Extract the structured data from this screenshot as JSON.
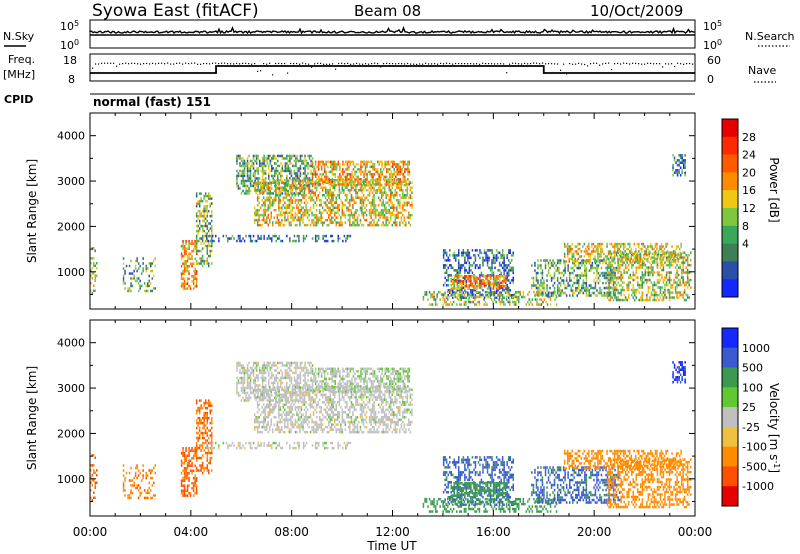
{
  "header": {
    "station": "Syowa East (fitACF)",
    "beam": "Beam 08",
    "date": "10/Oct/2009"
  },
  "panels": {
    "nsky": {
      "label": "N.Sky",
      "ticks_left": [
        "10^5",
        "10^0"
      ],
      "ticks_right": [
        "10^5",
        "10^0"
      ],
      "right_label": "N.Search"
    },
    "freq": {
      "label_line1": "Freq.",
      "label_line2": "[MHz]",
      "ticks_left": [
        "18",
        "8"
      ],
      "ticks_right": [
        "60",
        "0"
      ],
      "right_label": "Nave"
    },
    "cpid": {
      "label": "CPID",
      "mode": "normal (fast) 151"
    }
  },
  "colors": {
    "power": [
      "#1428ff",
      "#2a4faa",
      "#3f7f55",
      "#3aa85a",
      "#7dc83c",
      "#f0c814",
      "#ff8c00",
      "#ff5a00",
      "#ff2a00",
      "#e60000"
    ],
    "velocity": [
      "#1428ff",
      "#3a5ad0",
      "#3a9a50",
      "#60c830",
      "#c0c0c0",
      "#f0c040",
      "#ff8c00",
      "#ff5000",
      "#e60000"
    ]
  },
  "chart_data": [
    {
      "type": "heatmap",
      "name": "Power panel",
      "xlabel": "",
      "ylabel": "Slant Range [km]",
      "xlim": [
        0,
        24
      ],
      "ylim": [
        180,
        4500
      ],
      "x_ticks": [
        "00:00",
        "04:00",
        "08:00",
        "12:00",
        "16:00",
        "20:00",
        "00:00"
      ],
      "y_ticks": [
        1000,
        2000,
        3000,
        4000
      ],
      "colorbar": {
        "label": "Power [dB]",
        "ticks": [
          "4",
          "8",
          "12",
          "16",
          "20",
          "24",
          "28"
        ],
        "range": [
          0,
          30
        ]
      },
      "regions": [
        {
          "t": [
            0.0,
            0.3
          ],
          "r": [
            500,
            1500
          ],
          "power": 14,
          "vel": -300,
          "dens": 0.35
        },
        {
          "t": [
            1.3,
            2.6
          ],
          "r": [
            550,
            1300
          ],
          "power": 10,
          "vel": -250,
          "dens": 0.3
        },
        {
          "t": [
            3.6,
            4.2
          ],
          "r": [
            600,
            1700
          ],
          "power": 20,
          "vel": -350,
          "dens": 0.55
        },
        {
          "t": [
            4.2,
            4.8
          ],
          "r": [
            1100,
            2700
          ],
          "power": 12,
          "vel": -300,
          "dens": 0.45
        },
        {
          "t": [
            5.8,
            8.8
          ],
          "r": [
            2700,
            3550
          ],
          "power": 10,
          "vel": 0,
          "dens": 0.55
        },
        {
          "t": [
            6.5,
            12.8
          ],
          "r": [
            2000,
            3000
          ],
          "power": 16,
          "vel": 0,
          "dens": 0.5
        },
        {
          "t": [
            8.8,
            12.7
          ],
          "r": [
            2900,
            3450
          ],
          "power": 18,
          "vel": 10,
          "dens": 0.6
        },
        {
          "t": [
            4.6,
            10.5
          ],
          "r": [
            1650,
            1800
          ],
          "power": 6,
          "vel": 0,
          "dens": 0.35
        },
        {
          "t": [
            14.0,
            16.8
          ],
          "r": [
            400,
            1450
          ],
          "power": 6,
          "vel": 400,
          "dens": 0.45
        },
        {
          "t": [
            14.3,
            16.5
          ],
          "r": [
            600,
            900
          ],
          "power": 20,
          "vel": 150,
          "dens": 0.6
        },
        {
          "t": [
            13.2,
            18.5
          ],
          "r": [
            250,
            550
          ],
          "power": 14,
          "vel": 100,
          "dens": 0.4
        },
        {
          "t": [
            17.5,
            21.0
          ],
          "r": [
            450,
            1250
          ],
          "power": 10,
          "vel": 400,
          "dens": 0.45
        },
        {
          "t": [
            20.5,
            23.8
          ],
          "r": [
            350,
            1400
          ],
          "power": 14,
          "vel": -200,
          "dens": 0.45
        },
        {
          "t": [
            18.8,
            23.5
          ],
          "r": [
            1200,
            1600
          ],
          "power": 16,
          "vel": -150,
          "dens": 0.45
        },
        {
          "t": [
            23.1,
            23.6
          ],
          "r": [
            3100,
            3550
          ],
          "power": 6,
          "vel": 800,
          "dens": 0.6
        }
      ]
    },
    {
      "type": "heatmap",
      "name": "Velocity panel",
      "xlabel": "Time UT",
      "ylabel": "Slant Range [km]",
      "xlim": [
        0,
        24
      ],
      "ylim": [
        180,
        4500
      ],
      "x_ticks": [
        "00:00",
        "04:00",
        "08:00",
        "12:00",
        "16:00",
        "20:00",
        "00:00"
      ],
      "y_ticks": [
        1000,
        2000,
        3000,
        4000
      ],
      "colorbar": {
        "label": "Velocity [m s^-1]",
        "ticks": [
          "1000",
          "500",
          "100",
          "25",
          "-25",
          "-100",
          "-500",
          "-1000"
        ]
      }
    }
  ]
}
